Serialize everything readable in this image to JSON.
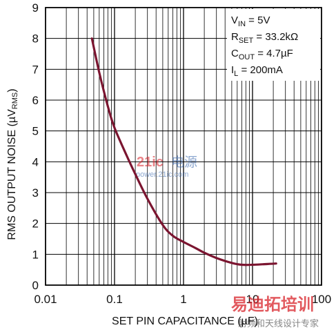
{
  "chart_data": {
    "type": "line",
    "x_scale": "log",
    "xlim": [
      0.01,
      100
    ],
    "ylim": [
      0,
      9
    ],
    "grid": true,
    "xlabel": "SET PIN CAPACITANCE (µF)",
    "ylabel_main": "RMS OUTPUT NOISE (µV",
    "ylabel_sub": "RMS",
    "ylabel_close": ")",
    "x_ticks": [
      0.01,
      0.1,
      1,
      10,
      100
    ],
    "x_tick_labels": [
      "0.01",
      "0.1",
      "1",
      "10",
      "100"
    ],
    "y_ticks": [
      0,
      1,
      2,
      3,
      4,
      5,
      6,
      7,
      8,
      9
    ],
    "y_tick_labels": [
      "0",
      "1",
      "2",
      "3",
      "4",
      "5",
      "6",
      "7",
      "8",
      "9"
    ],
    "series": [
      {
        "color": "#7b1530",
        "x": [
          0.047,
          0.06,
          0.08,
          0.1,
          0.15,
          0.2,
          0.3,
          0.5,
          0.7,
          1.0,
          1.5,
          2.0,
          3.0,
          5.0,
          7.0,
          10.0,
          15.0,
          22.0
        ],
        "y": [
          8.0,
          6.9,
          5.8,
          5.1,
          4.2,
          3.6,
          2.8,
          1.95,
          1.6,
          1.4,
          1.2,
          1.05,
          0.88,
          0.72,
          0.66,
          0.66,
          0.68,
          0.7
        ]
      }
    ],
    "conditions": [
      {
        "main": "V",
        "sub": "IN",
        "rest": " = 5V"
      },
      {
        "main": "R",
        "sub": "SET",
        "rest": " = 33.2kΩ"
      },
      {
        "main": "C",
        "sub": "OUT",
        "rest": " = 4.7µF"
      },
      {
        "main": "I",
        "sub": "L",
        "rest": " = 200mA"
      }
    ]
  },
  "watermark": {
    "logo_brand": "21ic",
    "logo_cn": "电源",
    "logo_url": "power.21ic.com",
    "footer_brand": "易迪拓培训",
    "footer_tagline": "射频和天线设计专家"
  },
  "colors": {
    "curve": "#7b1530",
    "grid": "#000000",
    "watermark_red": "#d9232a",
    "watermark_blue": "#2d5fa8"
  }
}
